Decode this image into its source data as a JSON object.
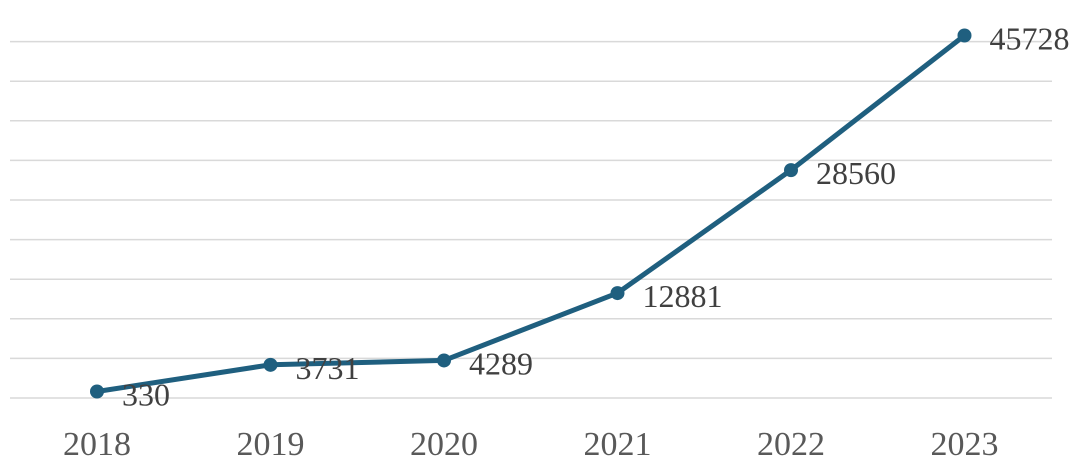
{
  "chart_data": {
    "type": "line",
    "title": "",
    "xlabel": "",
    "ylabel": "",
    "categories": [
      "2018",
      "2019",
      "2020",
      "2021",
      "2022",
      "2023"
    ],
    "values": [
      330,
      3731,
      4289,
      12881,
      28560,
      45728
    ],
    "ylim": [
      -500,
      50000
    ],
    "grid": true,
    "gridlines": 10,
    "legend": "none",
    "data_labels": true,
    "colors": {
      "series": "#1f5f7f",
      "grid": "#d9d9d9",
      "text": "#595959"
    }
  }
}
